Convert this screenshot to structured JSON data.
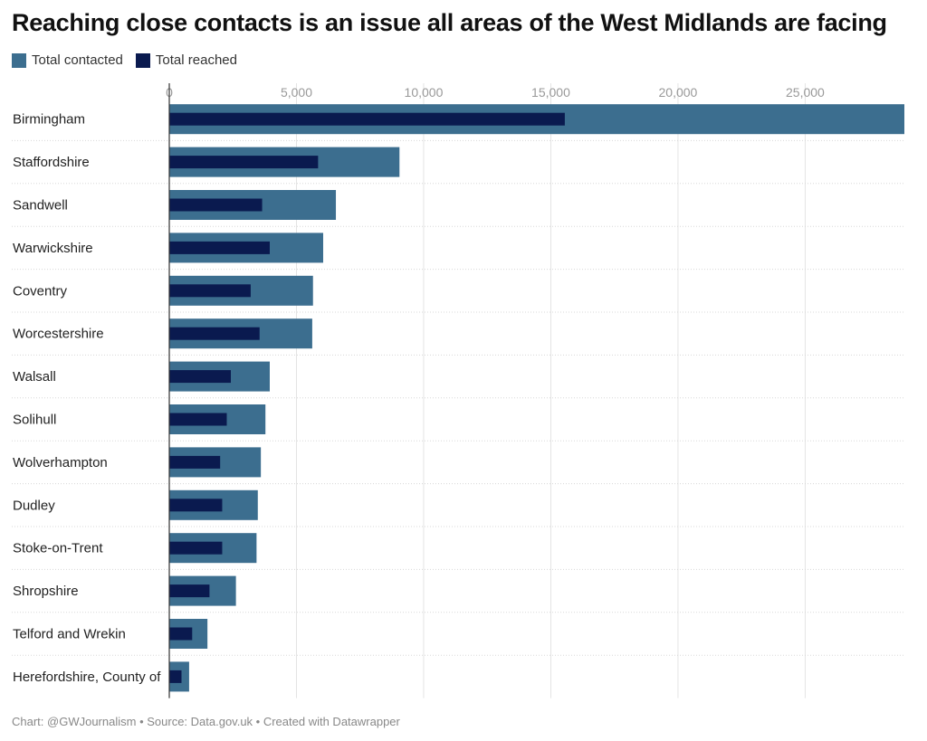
{
  "title": "Reaching close contacts is an issue all areas of the West Midlands are facing",
  "legend": [
    {
      "label": "Total contacted",
      "color": "#3c6e8f"
    },
    {
      "label": "Total reached",
      "color": "#0a1a4f"
    }
  ],
  "footer": {
    "chart": "Chart: @GWJournalism",
    "source": "Source: Data.gov.uk",
    "created": "Created with Datawrapper",
    "separator": " • "
  },
  "chart_data": {
    "type": "bar",
    "orientation": "horizontal",
    "title": "Reaching close contacts is an issue all areas of the West Midlands are facing",
    "xlim": [
      0,
      28900
    ],
    "ticks": [
      0,
      5000,
      10000,
      15000,
      20000,
      25000
    ],
    "tick_labels": [
      "0",
      "5,000",
      "10,000",
      "15,000",
      "20,000",
      "25,000"
    ],
    "grid": true,
    "legend_position": "top-left",
    "categories": [
      "Birmingham",
      "Staffordshire",
      "Sandwell",
      "Warwickshire",
      "Coventry",
      "Worcestershire",
      "Walsall",
      "Solihull",
      "Wolverhampton",
      "Dudley",
      "Stoke-on-Trent",
      "Shropshire",
      "Telford and Wrekin",
      "Herefordshire, County of"
    ],
    "series": [
      {
        "name": "Total contacted",
        "color": "#3c6e8f",
        "values": [
          28900,
          9050,
          6550,
          6050,
          5650,
          5620,
          3950,
          3780,
          3600,
          3480,
          3430,
          2620,
          1500,
          780
        ]
      },
      {
        "name": "Total reached",
        "color": "#0a1a4f",
        "values": [
          15550,
          5850,
          3650,
          3950,
          3200,
          3550,
          2420,
          2260,
          2000,
          2080,
          2080,
          1580,
          900,
          480
        ]
      }
    ]
  }
}
